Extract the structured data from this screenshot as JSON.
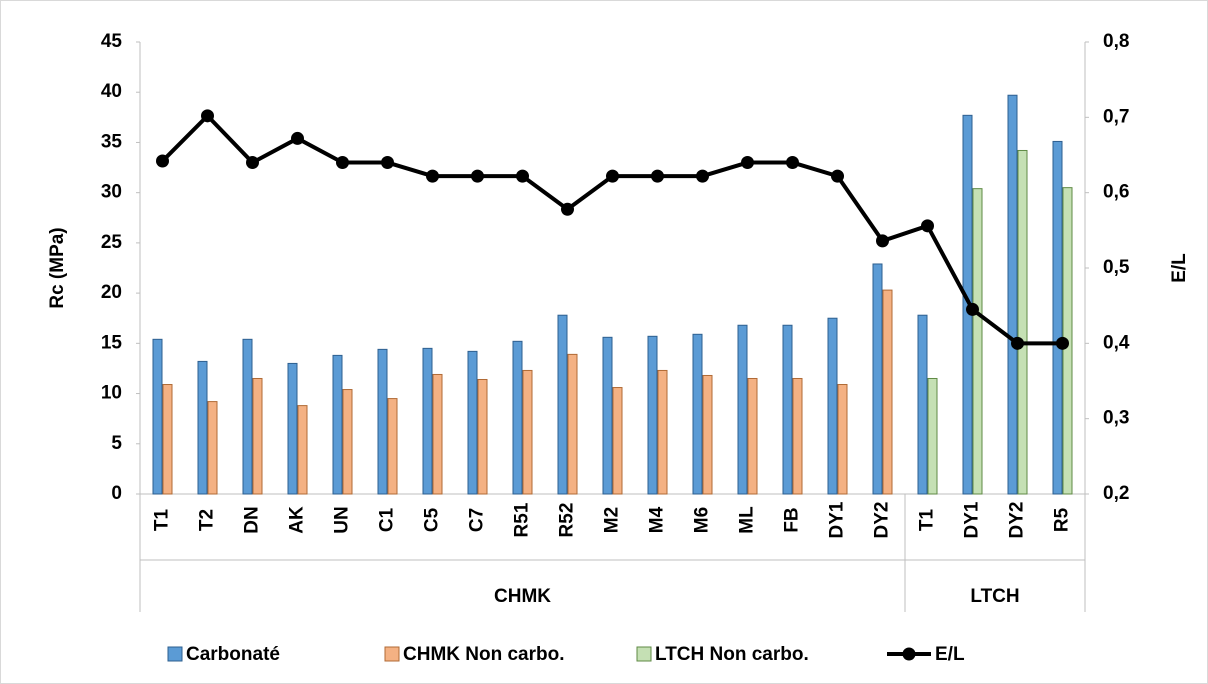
{
  "chart_data": {
    "type": "bar_line",
    "groups": [
      {
        "name": "CHMK",
        "categories": [
          "T1",
          "T2",
          "DN",
          "AK",
          "UN",
          "C1",
          "C5",
          "C7",
          "R51",
          "R52",
          "M2",
          "M4",
          "M6",
          "ML",
          "FB",
          "DY1",
          "DY2"
        ]
      },
      {
        "name": "LTCH",
        "categories": [
          "T1",
          "DY1",
          "DY2",
          "R5"
        ]
      }
    ],
    "series": [
      {
        "name": "Carbonaté",
        "type": "bar",
        "color": "#5b9bd5",
        "values": [
          15.4,
          13.2,
          15.4,
          13.0,
          13.8,
          14.4,
          14.5,
          14.2,
          15.2,
          17.8,
          15.6,
          15.7,
          15.9,
          16.8,
          16.8,
          17.5,
          22.9,
          17.8,
          37.7,
          39.7,
          35.1
        ]
      },
      {
        "name": "CHMK Non carbo.",
        "type": "bar",
        "color": "#f4b183",
        "values": [
          10.9,
          9.2,
          11.5,
          8.8,
          10.4,
          9.5,
          11.9,
          11.4,
          12.3,
          13.9,
          10.6,
          12.3,
          11.8,
          11.5,
          11.5,
          10.9,
          20.3,
          null,
          null,
          null,
          null
        ]
      },
      {
        "name": "LTCH Non carbo.",
        "type": "bar",
        "color": "#c5e0b4",
        "values": [
          null,
          null,
          null,
          null,
          null,
          null,
          null,
          null,
          null,
          null,
          null,
          null,
          null,
          null,
          null,
          null,
          null,
          11.5,
          30.4,
          34.2,
          30.5
        ]
      },
      {
        "name": "E/L",
        "type": "line",
        "axis": "y2",
        "color": "#000000",
        "values": [
          0.642,
          0.702,
          0.64,
          0.672,
          0.64,
          0.64,
          0.622,
          0.622,
          0.622,
          0.578,
          0.622,
          0.622,
          0.622,
          0.64,
          0.64,
          0.622,
          0.536,
          0.556,
          0.445,
          0.4,
          0.4
        ]
      }
    ],
    "ylabel": "Rc (MPa)",
    "y2label": "E/L",
    "ylim": [
      0,
      45
    ],
    "yticks": [
      0,
      5,
      10,
      15,
      20,
      25,
      30,
      35,
      40,
      45
    ],
    "y2lim": [
      0.2,
      0.8
    ],
    "y2ticks": [
      {
        "value": 0.2,
        "label": "0,2"
      },
      {
        "value": 0.3,
        "label": "0,3"
      },
      {
        "value": 0.4,
        "label": "0,4"
      },
      {
        "value": 0.5,
        "label": "0,5"
      },
      {
        "value": 0.6,
        "label": "0,6"
      },
      {
        "value": 0.7,
        "label": "0,7"
      },
      {
        "value": 0.8,
        "label": "0,8"
      }
    ],
    "legend": "bottom",
    "grid": false
  }
}
